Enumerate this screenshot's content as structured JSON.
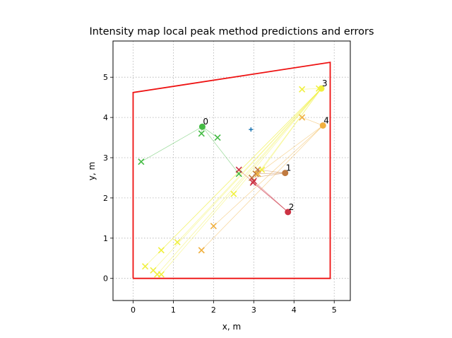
{
  "chart_data": {
    "type": "scatter",
    "title": "Intensity map local peak method predictions and errors",
    "xlabel": "x, m",
    "ylabel": "y, m",
    "xlim": [
      -0.5,
      5.4
    ],
    "ylim": [
      -0.55,
      5.9
    ],
    "xticks": [
      0,
      1,
      2,
      3,
      4,
      5
    ],
    "yticks": [
      0,
      1,
      2,
      3,
      4,
      5
    ],
    "grid": true,
    "room_outline": {
      "color": "#ee1111",
      "points": [
        [
          0,
          0
        ],
        [
          0,
          4.62
        ],
        [
          4.9,
          5.37
        ],
        [
          4.9,
          0
        ],
        [
          0,
          0
        ]
      ]
    },
    "center_marker": {
      "x": 2.93,
      "y": 3.7,
      "color": "#1f77b4"
    },
    "sources": [
      {
        "label": "0",
        "x": 1.72,
        "y": 3.77,
        "color": "#44bb44",
        "predictions": [
          [
            0.2,
            2.9
          ],
          [
            1.7,
            3.6
          ],
          [
            2.1,
            3.5
          ],
          [
            2.63,
            2.6
          ]
        ]
      },
      {
        "label": "1",
        "x": 3.78,
        "y": 2.62,
        "color": "#c07a40",
        "predictions": [
          [
            3.05,
            2.6
          ],
          [
            3.1,
            2.7
          ],
          [
            2.95,
            2.5
          ]
        ]
      },
      {
        "label": "2",
        "x": 3.85,
        "y": 1.65,
        "color": "#cc3344",
        "predictions": [
          [
            2.63,
            2.7
          ],
          [
            3.0,
            2.42
          ],
          [
            2.98,
            2.38
          ]
        ]
      },
      {
        "label": "3",
        "x": 4.68,
        "y": 4.72,
        "color": "#f0f040",
        "predictions": [
          [
            4.2,
            4.7
          ],
          [
            4.62,
            4.72
          ],
          [
            0.3,
            0.3
          ],
          [
            0.5,
            0.2
          ],
          [
            0.6,
            0.1
          ],
          [
            0.7,
            0.1
          ],
          [
            0.7,
            0.7
          ],
          [
            1.1,
            0.9
          ],
          [
            2.5,
            2.1
          ],
          [
            3.1,
            2.6
          ],
          [
            3.2,
            2.7
          ]
        ]
      },
      {
        "label": "4",
        "x": 4.72,
        "y": 3.8,
        "color": "#f0b040",
        "predictions": [
          [
            4.2,
            4.0
          ],
          [
            1.7,
            0.7
          ],
          [
            2.0,
            1.3
          ],
          [
            3.1,
            2.6
          ]
        ]
      }
    ]
  }
}
